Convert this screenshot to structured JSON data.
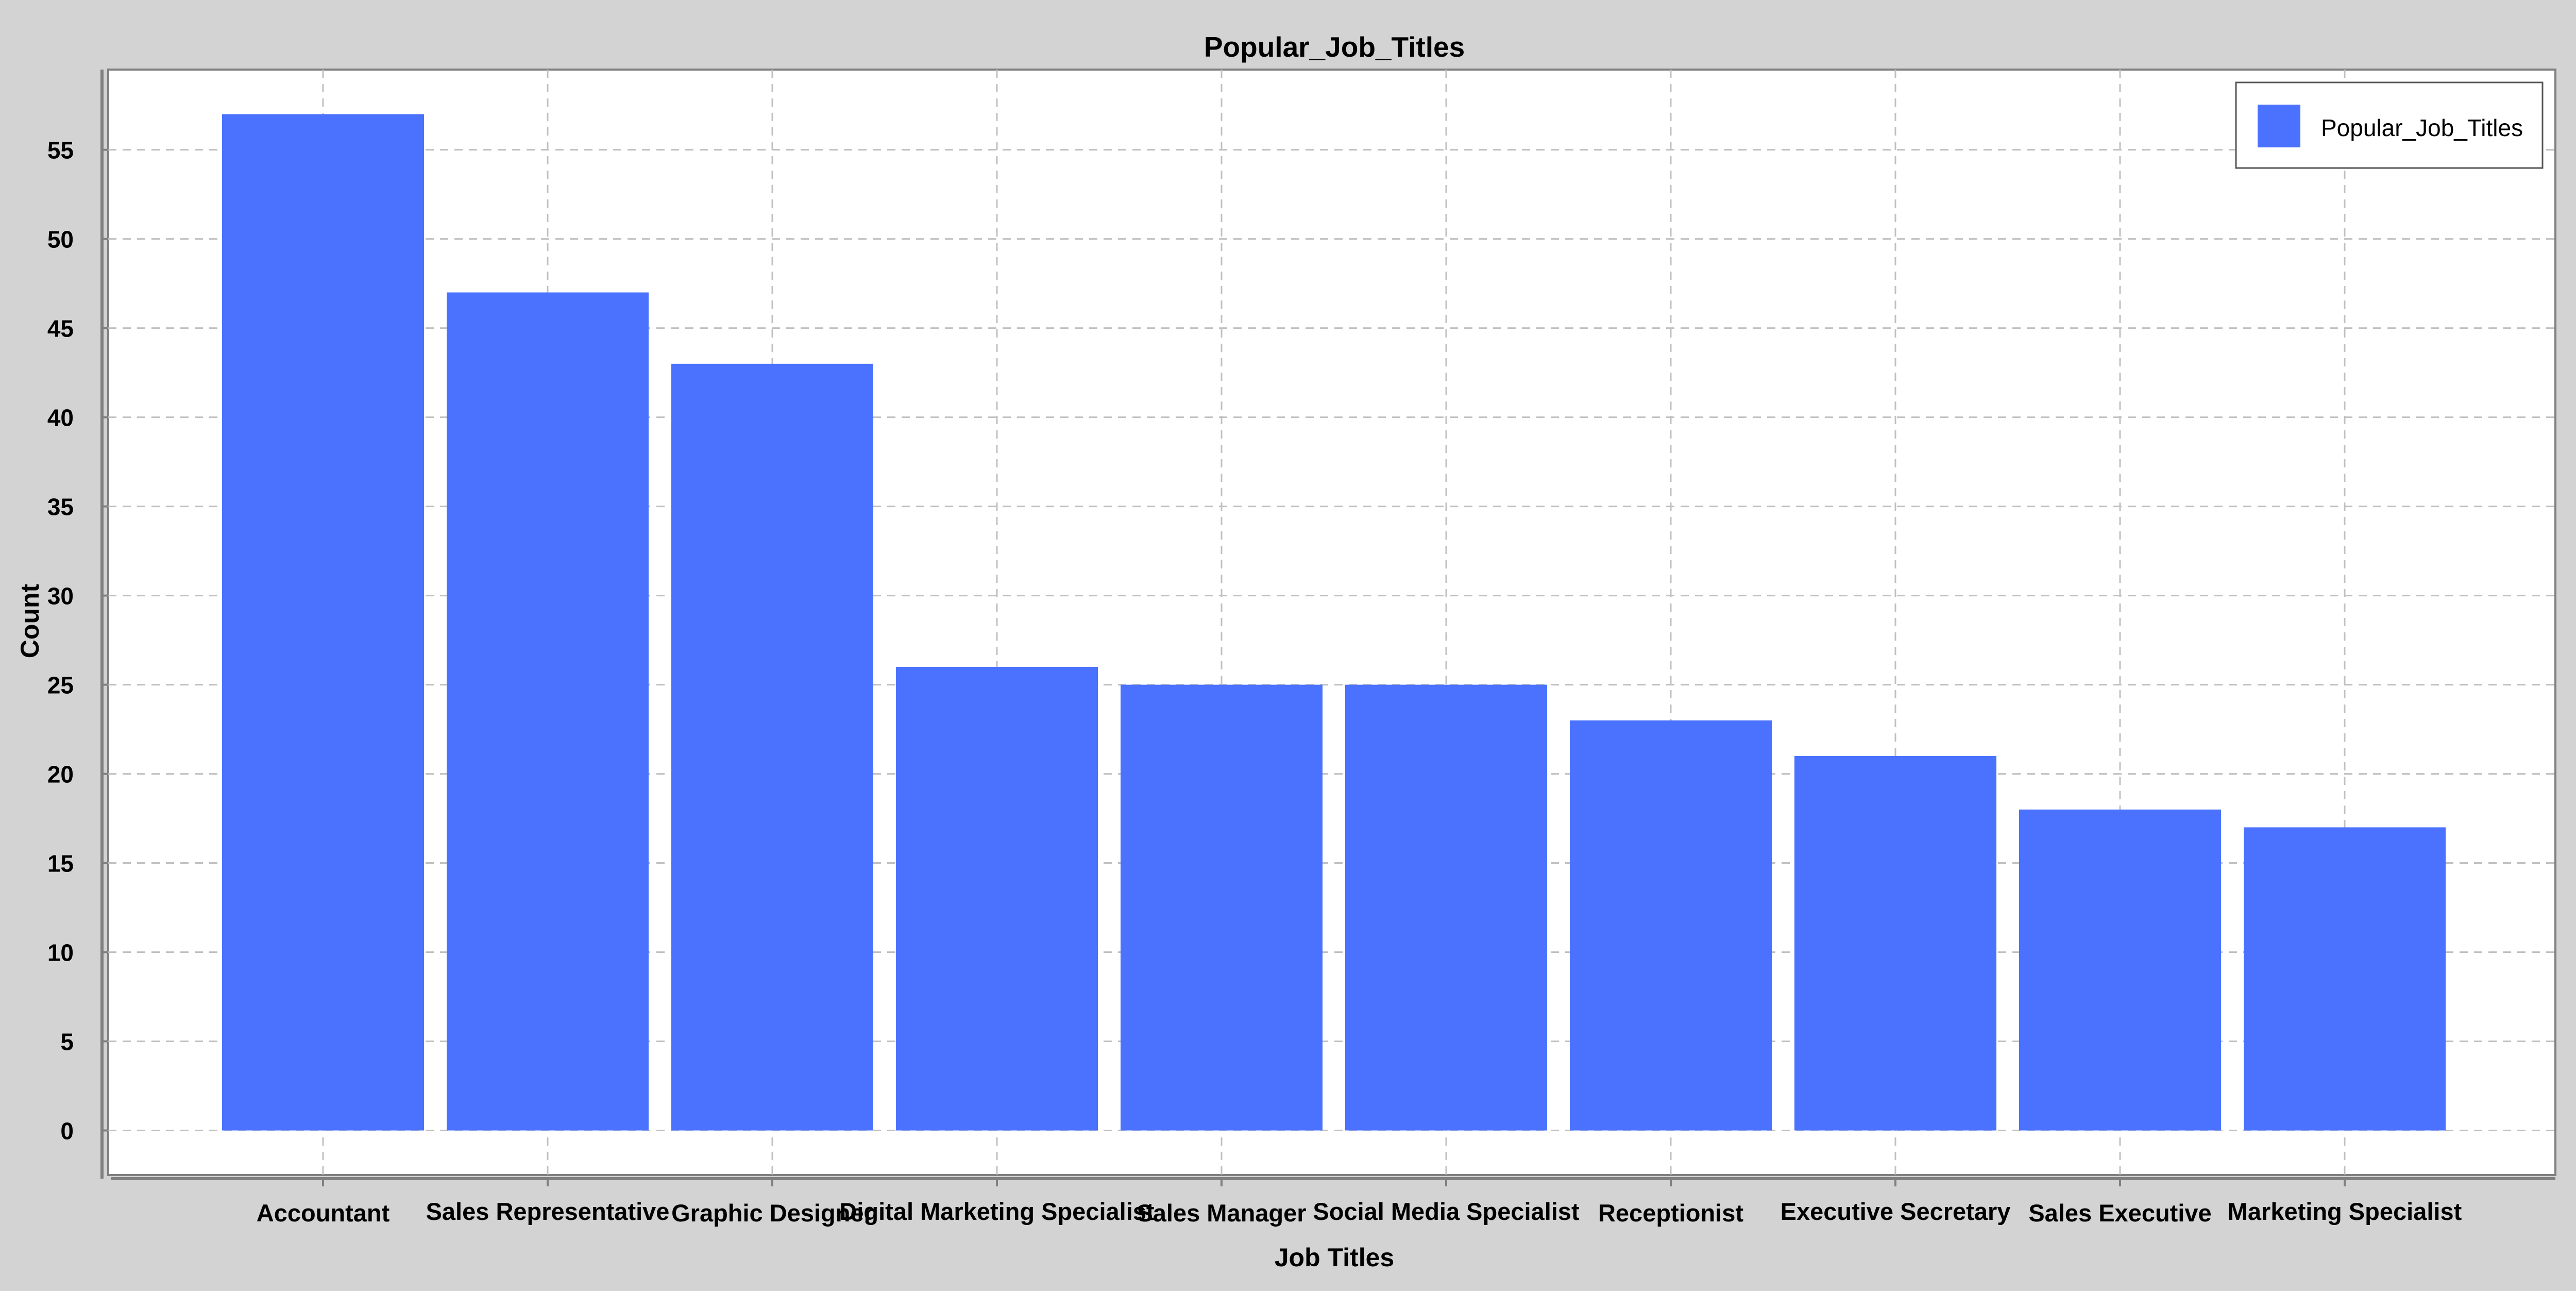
{
  "chart_data": {
    "type": "bar",
    "title": "Popular_Job_Titles",
    "xlabel": "Job Titles",
    "ylabel": "Count",
    "categories": [
      "Accountant",
      "Sales Representative",
      "Graphic Designer",
      "Digital Marketing Specialist",
      "Sales Manager",
      "Social Media Specialist",
      "Receptionist",
      "Executive Secretary",
      "Sales Executive",
      "Marketing Specialist"
    ],
    "series": [
      {
        "name": "Popular_Job_Titles",
        "values": [
          57,
          47,
          43,
          26,
          25,
          25,
          23,
          21,
          18,
          17
        ],
        "color": "#4a72ff"
      }
    ],
    "yticks": [
      0,
      5,
      10,
      15,
      20,
      25,
      30,
      35,
      40,
      45,
      50,
      55
    ],
    "ylim": [
      -2.5,
      59.5
    ],
    "grid": true,
    "legend": {
      "position": "top-right"
    }
  }
}
